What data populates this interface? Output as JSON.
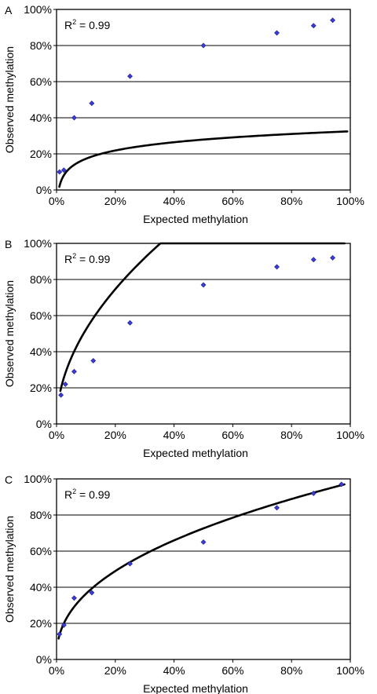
{
  "chart_data": [
    {
      "type": "scatter",
      "panel": "A",
      "xlabel": "Expected methylation",
      "ylabel": "Observed methylation",
      "annotation": "R² = 0.99",
      "xlim": [
        0,
        100
      ],
      "ylim": [
        0,
        100
      ],
      "xticks": [
        "0%",
        "20%",
        "40%",
        "60%",
        "80%",
        "100%"
      ],
      "yticks": [
        "0%",
        "20%",
        "40%",
        "60%",
        "80%",
        "100%"
      ],
      "grid": "horizontal",
      "points": [
        [
          1,
          10
        ],
        [
          2.5,
          11
        ],
        [
          6,
          40
        ],
        [
          12,
          48
        ],
        [
          25,
          63
        ],
        [
          50,
          80
        ],
        [
          75,
          87
        ],
        [
          87.5,
          91
        ],
        [
          94,
          94
        ]
      ],
      "fit": {
        "a": 6.6,
        "b": 2.1,
        "type": "logarithmic",
        "xmin": 0.95,
        "xmax": 99
      }
    },
    {
      "type": "scatter",
      "panel": "B",
      "xlabel": "Expected methylation",
      "ylabel": "Observed methylation",
      "annotation": "R² = 0.99",
      "xlim": [
        0,
        100
      ],
      "ylim": [
        0,
        100
      ],
      "xticks": [
        "0%",
        "20%",
        "40%",
        "60%",
        "80%",
        "100%"
      ],
      "yticks": [
        "0%",
        "20%",
        "40%",
        "60%",
        "80%",
        "100%"
      ],
      "grid": "horizontal",
      "points": [
        [
          1.5,
          16
        ],
        [
          3,
          22
        ],
        [
          6,
          29
        ],
        [
          12.5,
          35
        ],
        [
          25,
          56
        ],
        [
          50,
          77
        ],
        [
          75,
          87
        ],
        [
          87.5,
          91
        ],
        [
          94,
          92
        ]
      ],
      "fit": {
        "a": 16,
        "b": 0.514,
        "type": "power",
        "xmin": 1.3,
        "xmax": 98
      }
    },
    {
      "type": "scatter",
      "panel": "C",
      "xlabel": "Expected methylation",
      "ylabel": "Observed methylation",
      "annotation": "R² = 0.99",
      "xlim": [
        0,
        100
      ],
      "ylim": [
        0,
        100
      ],
      "xticks": [
        "0%",
        "20%",
        "40%",
        "60%",
        "80%",
        "100%"
      ],
      "yticks": [
        "0%",
        "20%",
        "40%",
        "60%",
        "80%",
        "100%"
      ],
      "grid": "horizontal",
      "points": [
        [
          1,
          14
        ],
        [
          2.5,
          19
        ],
        [
          6,
          34
        ],
        [
          12,
          37
        ],
        [
          25,
          53
        ],
        [
          50,
          65
        ],
        [
          75,
          84
        ],
        [
          87.5,
          92
        ],
        [
          97,
          97
        ]
      ],
      "fit": {
        "a": 13.5,
        "b": 0.43,
        "type": "power",
        "xmin": 0.7,
        "xmax": 98
      }
    }
  ],
  "colors": {
    "point": "#3b3bd6",
    "point_stroke": "#1a1a8c",
    "fit_line": "#000000",
    "grid": "#000000"
  }
}
